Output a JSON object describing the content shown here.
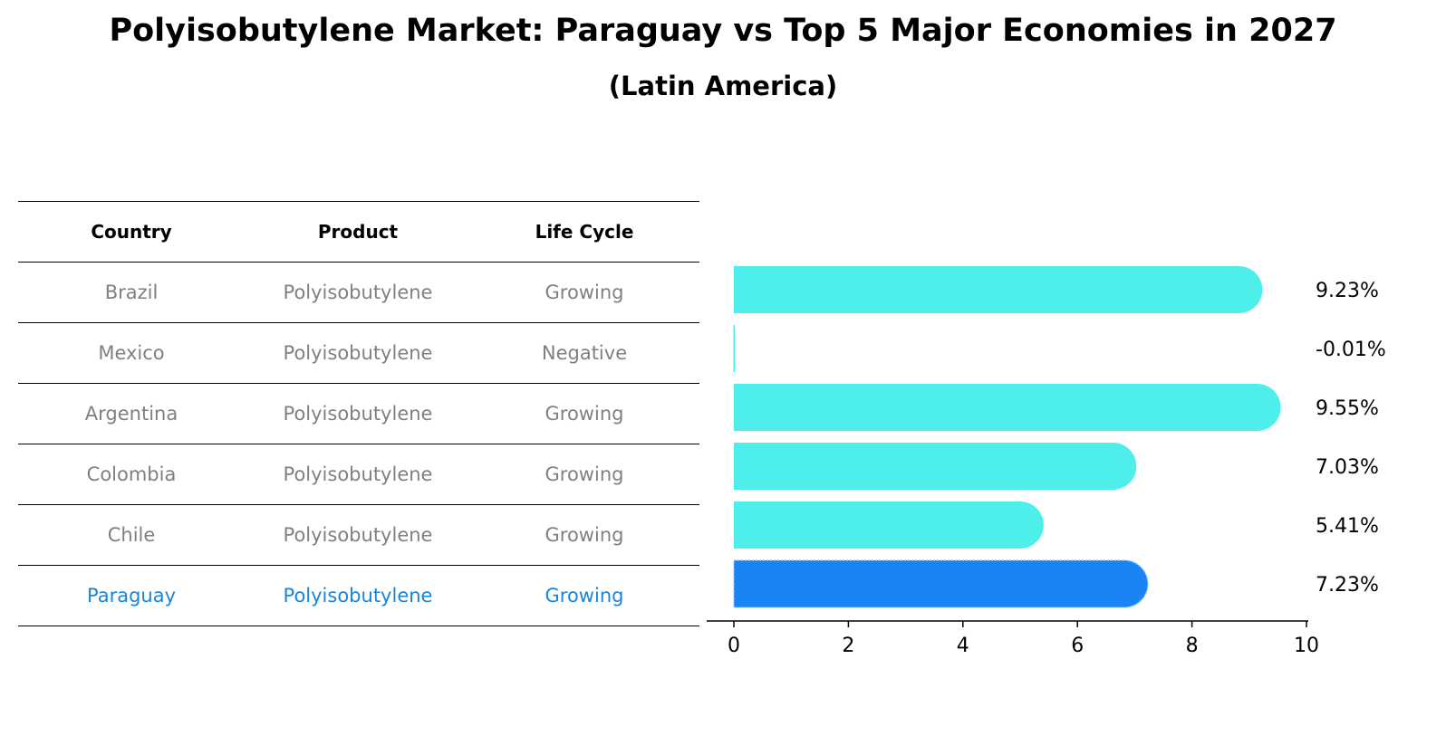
{
  "title": "Polyisobutylene Market: Paraguay vs Top 5 Major Economies in 2027",
  "subtitle": "(Latin America)",
  "table": {
    "headers": [
      "Country",
      "Product",
      "Life Cycle"
    ],
    "rows": [
      {
        "country": "Brazil",
        "product": "Polyisobutylene",
        "life_cycle": "Growing"
      },
      {
        "country": "Mexico",
        "product": "Polyisobutylene",
        "life_cycle": "Negative"
      },
      {
        "country": "Argentina",
        "product": "Polyisobutylene",
        "life_cycle": "Growing"
      },
      {
        "country": "Colombia",
        "product": "Polyisobutylene",
        "life_cycle": "Growing"
      },
      {
        "country": "Chile",
        "product": "Polyisobutylene",
        "life_cycle": "Growing"
      },
      {
        "country": "Paraguay",
        "product": "Polyisobutylene",
        "life_cycle": "Growing"
      }
    ]
  },
  "colors": {
    "bar": "#4eeeea",
    "highlight_bar": "#1a84f5",
    "highlight_text": "#1a84d8",
    "muted_text": "#808080"
  },
  "chart_data": {
    "type": "bar",
    "orientation": "horizontal",
    "categories": [
      "Brazil",
      "Mexico",
      "Argentina",
      "Colombia",
      "Chile",
      "Paraguay"
    ],
    "values": [
      9.23,
      -0.01,
      9.55,
      7.03,
      5.41,
      7.23
    ],
    "value_labels": [
      "9.23%",
      "-0.01%",
      "9.55%",
      "7.03%",
      "5.41%",
      "7.23%"
    ],
    "highlight": "Paraguay",
    "xlim": [
      0,
      10
    ],
    "xticks": [
      "0",
      "2",
      "4",
      "6",
      "8",
      "10"
    ],
    "xlabel": "",
    "ylabel": "",
    "grid": false
  }
}
